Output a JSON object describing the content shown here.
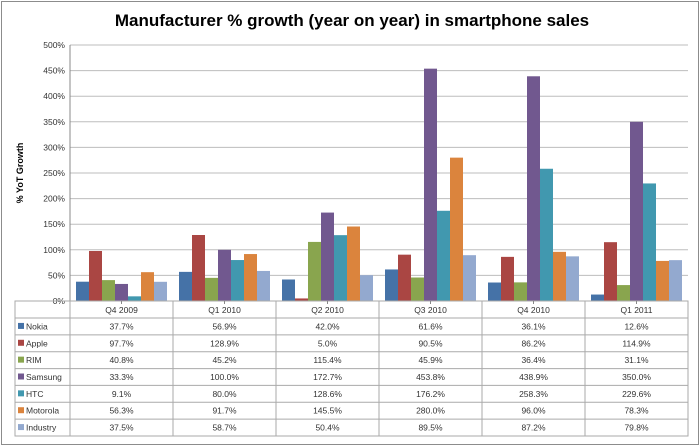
{
  "chart_data": {
    "type": "bar",
    "title": "Manufacturer % growth (year on year) in smartphone sales",
    "ylabel": "% YoT Growth",
    "xlabel": "",
    "ylim": [
      0,
      500
    ],
    "yticks": [
      "0%",
      "50%",
      "100%",
      "150%",
      "200%",
      "250%",
      "300%",
      "350%",
      "400%",
      "450%",
      "500%"
    ],
    "grid": true,
    "legend": "data-table",
    "categories": [
      "Q4 2009",
      "Q1 2010",
      "Q2 2010",
      "Q3 2010",
      "Q4 2010",
      "Q1 2011"
    ],
    "series": [
      {
        "name": "Nokia",
        "color": "#4572A7",
        "values": [
          37.7,
          56.9,
          42.0,
          61.6,
          36.1,
          12.6
        ],
        "labels": [
          "37.7%",
          "56.9%",
          "42.0%",
          "61.6%",
          "36.1%",
          "12.6%"
        ]
      },
      {
        "name": "Apple",
        "color": "#AA4643",
        "values": [
          97.7,
          128.9,
          5.0,
          90.5,
          86.2,
          114.9
        ],
        "labels": [
          "97.7%",
          "128.9%",
          "5.0%",
          "90.5%",
          "86.2%",
          "114.9%"
        ]
      },
      {
        "name": "RIM",
        "color": "#89A54E",
        "values": [
          40.8,
          45.2,
          115.4,
          45.9,
          36.4,
          31.1
        ],
        "labels": [
          "40.8%",
          "45.2%",
          "115.4%",
          "45.9%",
          "36.4%",
          "31.1%"
        ]
      },
      {
        "name": "Samsung",
        "color": "#71588F",
        "values": [
          33.3,
          100.0,
          172.7,
          453.8,
          438.9,
          350.0
        ],
        "labels": [
          "33.3%",
          "100.0%",
          "172.7%",
          "453.8%",
          "438.9%",
          "350.0%"
        ]
      },
      {
        "name": "HTC",
        "color": "#4198AF",
        "values": [
          9.1,
          80.0,
          128.6,
          176.2,
          258.3,
          229.6
        ],
        "labels": [
          "9.1%",
          "80.0%",
          "128.6%",
          "176.2%",
          "258.3%",
          "229.6%"
        ]
      },
      {
        "name": "Motorola",
        "color": "#DB843D",
        "values": [
          56.3,
          91.7,
          145.5,
          280.0,
          96.0,
          78.3
        ],
        "labels": [
          "56.3%",
          "91.7%",
          "145.5%",
          "280.0%",
          "96.0%",
          "78.3%"
        ]
      },
      {
        "name": "Industry",
        "color": "#93A9CF",
        "values": [
          37.5,
          58.7,
          50.4,
          89.5,
          87.2,
          79.8
        ],
        "labels": [
          "37.5%",
          "58.7%",
          "50.4%",
          "89.5%",
          "87.2%",
          "79.8%"
        ]
      }
    ]
  }
}
